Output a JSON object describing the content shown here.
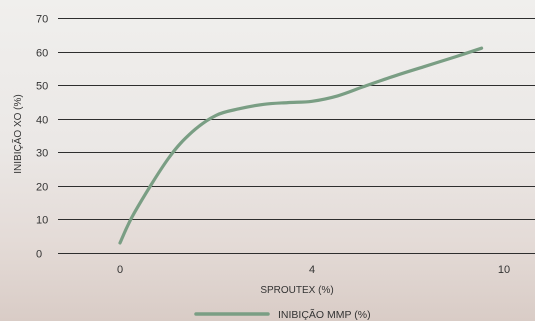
{
  "chart_data": {
    "type": "line",
    "xlabel": "SPROUTEX (%)",
    "ylabel": "INIBIÇÃO XO (%)",
    "x_ticks": [
      "0",
      "4",
      "10"
    ],
    "y_ticks": [
      "0",
      "10",
      "20",
      "30",
      "40",
      "50",
      "60",
      "70"
    ],
    "ylim": [
      0,
      70
    ],
    "grid": "horizontal",
    "legend_position": "bottom-center",
    "series": [
      {
        "name": "INIBIÇÃO MMP (%)",
        "color": "#7a9e84",
        "points": [
          [
            0,
            3
          ],
          [
            0.3,
            12
          ],
          [
            1,
            28
          ],
          [
            1.5,
            36
          ],
          [
            2,
            41
          ],
          [
            2.5,
            43
          ],
          [
            3,
            44.3
          ],
          [
            3.5,
            44.8
          ],
          [
            4,
            45.2
          ],
          [
            4.8,
            46.8
          ],
          [
            5.6,
            49.5
          ],
          [
            6.5,
            52.5
          ],
          [
            7.5,
            55.5
          ],
          [
            8.5,
            58.5
          ],
          [
            9.3,
            61
          ]
        ]
      }
    ]
  }
}
